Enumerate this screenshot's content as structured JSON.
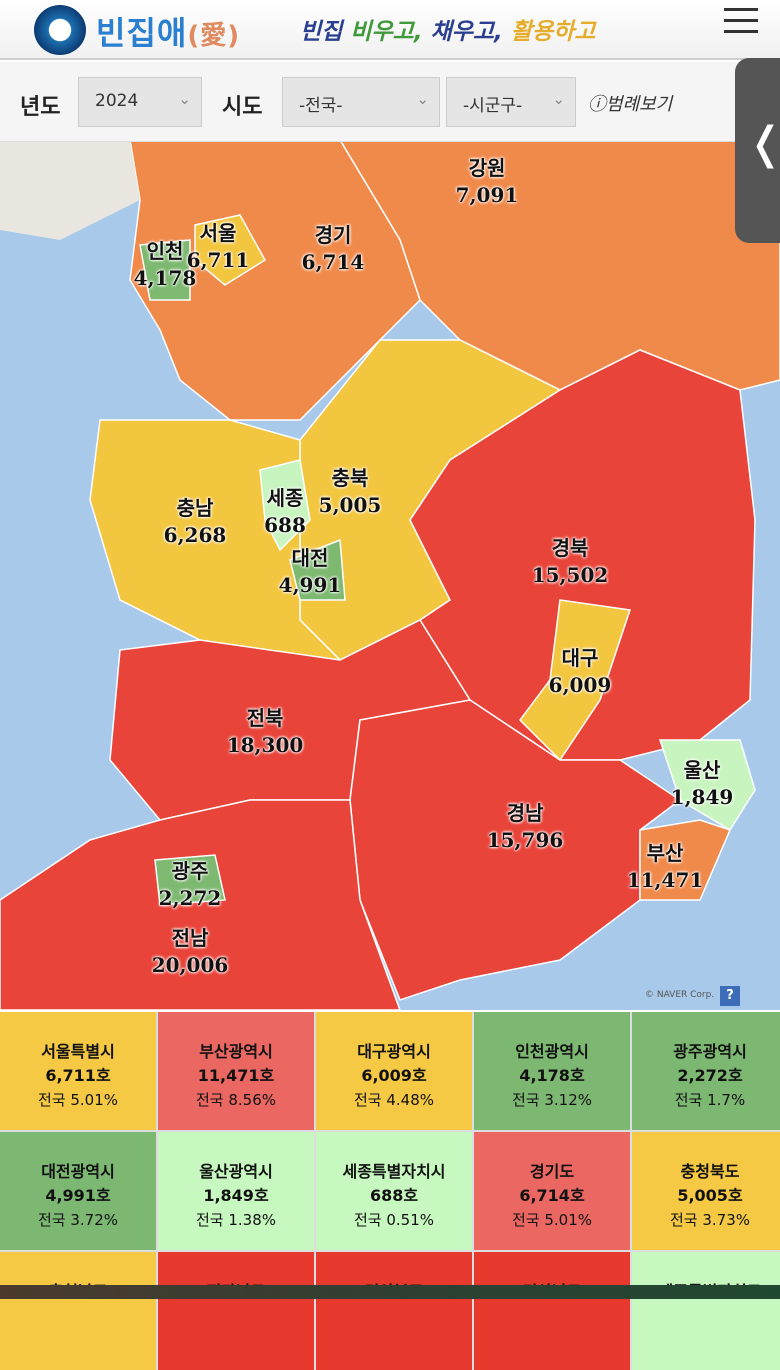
{
  "header": {
    "logo_text": "빈집애",
    "logo_hanja": "(愛)",
    "slogan": [
      "빈집",
      "비우고,",
      "채우고,",
      "활용하고"
    ]
  },
  "filters": {
    "year_label": "년도",
    "year_value": "2024",
    "sido_label": "시도",
    "sido_value": "-전국-",
    "sigungu_value": "-시군구-",
    "legend_button": "ⓘ범례보기"
  },
  "side_tab": {
    "icon": "chevron-left",
    "glyph": "❬"
  },
  "map": {
    "attribution": "© NAVER Corp.",
    "help": "?",
    "colors": {
      "sea": "#a8c9ea",
      "orange": "#f08a4b",
      "red": "#e8443a",
      "yellow": "#f3c63f",
      "green": "#7db970",
      "lightgreen": "#c8f5bf"
    },
    "regions": [
      {
        "name": "강원",
        "value": "7,091",
        "color": "#f08a4b"
      },
      {
        "name": "서울",
        "value": "6,711",
        "color": "#f3c63f"
      },
      {
        "name": "인천",
        "value": "4,178",
        "color": "#7db970"
      },
      {
        "name": "경기",
        "value": "6,714",
        "color": "#f08a4b"
      },
      {
        "name": "충남",
        "value": "6,268",
        "color": "#f3c63f"
      },
      {
        "name": "세종",
        "value": "688",
        "color": "#c8f5bf"
      },
      {
        "name": "충북",
        "value": "5,005",
        "color": "#f3c63f"
      },
      {
        "name": "대전",
        "value": "4,991",
        "color": "#7db970"
      },
      {
        "name": "경북",
        "value": "15,502",
        "color": "#e8443a"
      },
      {
        "name": "대구",
        "value": "6,009",
        "color": "#f3c63f"
      },
      {
        "name": "전북",
        "value": "18,300",
        "color": "#e8443a"
      },
      {
        "name": "울산",
        "value": "1,849",
        "color": "#c8f5bf"
      },
      {
        "name": "경남",
        "value": "15,796",
        "color": "#e8443a"
      },
      {
        "name": "부산",
        "value": "11,471",
        "color": "#f08a4b"
      },
      {
        "name": "광주",
        "value": "2,272",
        "color": "#7db970"
      },
      {
        "name": "전남",
        "value": "20,006",
        "color": "#e8443a"
      }
    ]
  },
  "table": [
    {
      "name": "서울특별시",
      "count": "6,711호",
      "pct": "전국 5.01%",
      "color": "#f6c944"
    },
    {
      "name": "부산광역시",
      "count": "11,471호",
      "pct": "전국 8.56%",
      "color": "#ea6762"
    },
    {
      "name": "대구광역시",
      "count": "6,009호",
      "pct": "전국 4.48%",
      "color": "#f6c944"
    },
    {
      "name": "인천광역시",
      "count": "4,178호",
      "pct": "전국 3.12%",
      "color": "#7db873"
    },
    {
      "name": "광주광역시",
      "count": "2,272호",
      "pct": "전국 1.7%",
      "color": "#7db873"
    },
    {
      "name": "대전광역시",
      "count": "4,991호",
      "pct": "전국 3.72%",
      "color": "#7db873"
    },
    {
      "name": "울산광역시",
      "count": "1,849호",
      "pct": "전국 1.38%",
      "color": "#c7f8bf"
    },
    {
      "name": "세종특별자치시",
      "count": "688호",
      "pct": "전국 0.51%",
      "color": "#c7f8bf"
    },
    {
      "name": "경기도",
      "count": "6,714호",
      "pct": "전국 5.01%",
      "color": "#ea6762"
    },
    {
      "name": "충청북도",
      "count": "5,005호",
      "pct": "전국 3.73%",
      "color": "#f6c944"
    },
    {
      "name": "충청남도",
      "count": "",
      "pct": "",
      "color": "#f6c944"
    },
    {
      "name": "전라남도",
      "count": "",
      "pct": "",
      "color": "#e8392e"
    },
    {
      "name": "경상북도",
      "count": "",
      "pct": "",
      "color": "#e8392e"
    },
    {
      "name": "경상남도",
      "count": "",
      "pct": "",
      "color": "#e8392e"
    },
    {
      "name": "제주특별자치도",
      "count": "",
      "pct": "",
      "color": "#c7f8bf"
    }
  ]
}
